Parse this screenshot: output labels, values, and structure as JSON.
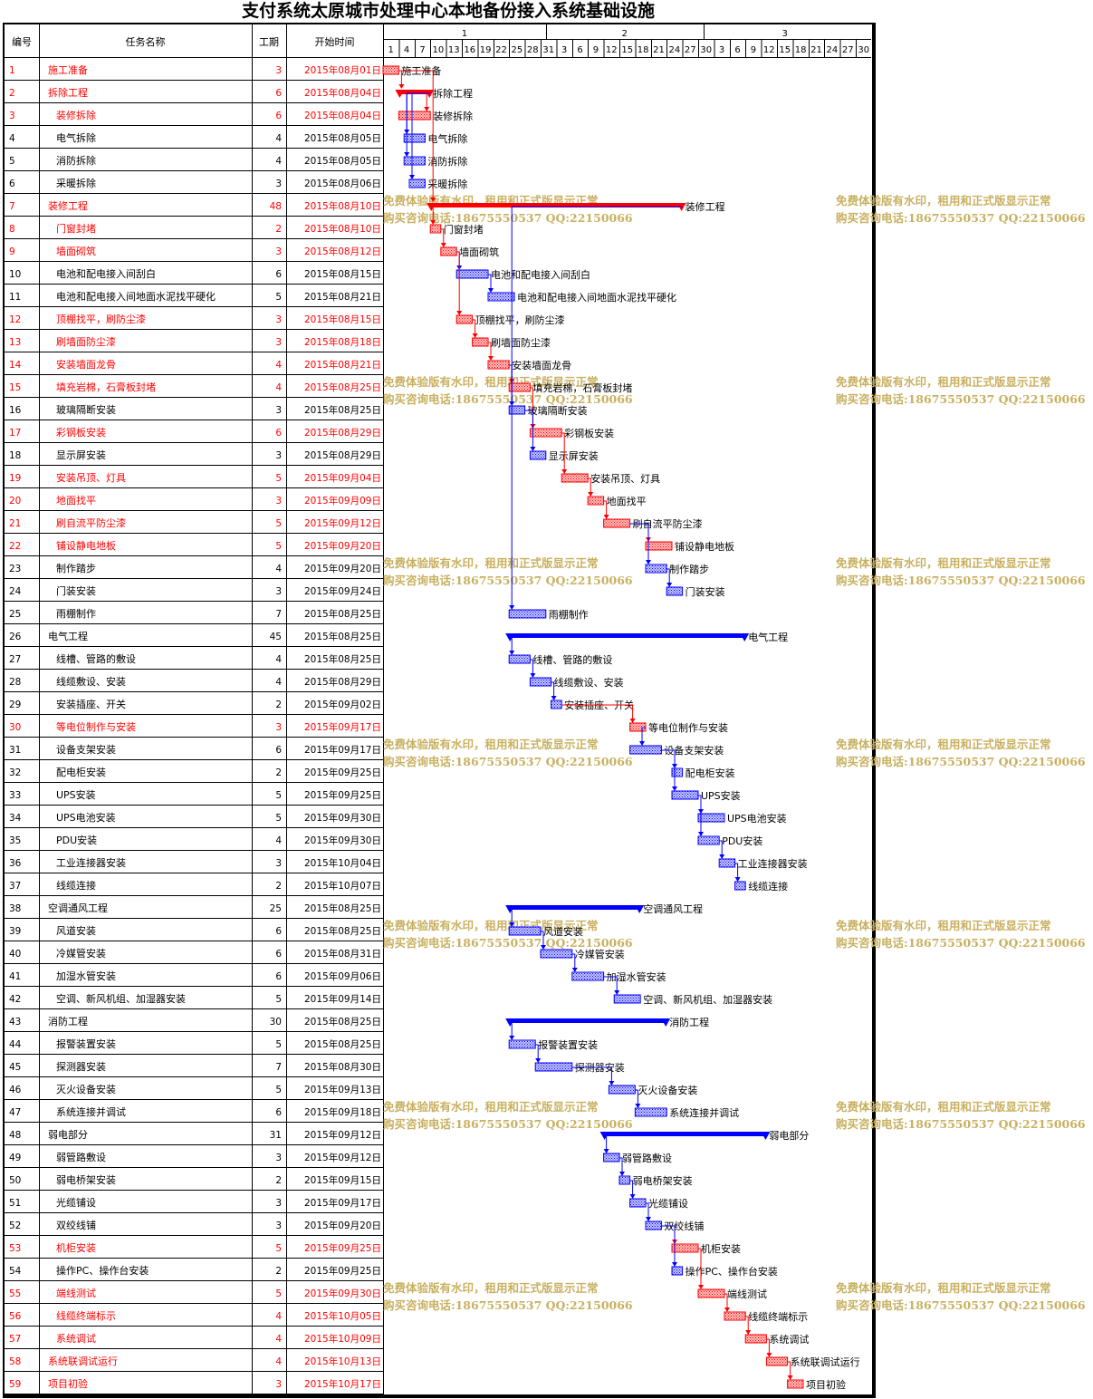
{
  "title": "支付系统太原城市处理中心本地备份接入系统基础设施",
  "watermark": {
    "line1": "免费体验版有水印，租用和正式版显示正常",
    "line2": "购买咨询电话:18675550537 QQ:22150066"
  },
  "colors": {
    "critical": "#ff0000",
    "normal": "#0000ff",
    "watermark": "#c8b060"
  },
  "chart_data": {
    "type": "gantt",
    "columns": [
      "编号",
      "任务名称",
      "工期",
      "开始时间"
    ],
    "months": [
      "1",
      "2",
      "3"
    ],
    "day_labels": [
      "1",
      "4",
      "7",
      "10",
      "13",
      "16",
      "19",
      "22",
      "25",
      "28",
      "31",
      "3",
      "6",
      "9",
      "12",
      "15",
      "18",
      "21",
      "24",
      "27",
      "30",
      "3",
      "6",
      "9",
      "12",
      "15",
      "18",
      "21",
      "24",
      "27",
      "30"
    ],
    "tasks": [
      {
        "id": "1",
        "name": "施工准备",
        "duration": 3,
        "start": "2015年08月01日",
        "critical": true,
        "summary": false,
        "level": 0
      },
      {
        "id": "2",
        "name": "拆除工程",
        "duration": 6,
        "start": "2015年08月04日",
        "critical": true,
        "summary": true,
        "level": 0
      },
      {
        "id": "3",
        "name": "装修拆除",
        "duration": 6,
        "start": "2015年08月04日",
        "critical": true,
        "summary": false,
        "level": 1
      },
      {
        "id": "4",
        "name": "电气拆除",
        "duration": 4,
        "start": "2015年08月05日",
        "critical": false,
        "summary": false,
        "level": 1
      },
      {
        "id": "5",
        "name": "消防拆除",
        "duration": 4,
        "start": "2015年08月05日",
        "critical": false,
        "summary": false,
        "level": 1
      },
      {
        "id": "6",
        "name": "采暖拆除",
        "duration": 3,
        "start": "2015年08月06日",
        "critical": false,
        "summary": false,
        "level": 1
      },
      {
        "id": "7",
        "name": "装修工程",
        "duration": 48,
        "start": "2015年08月10日",
        "critical": true,
        "summary": true,
        "level": 0
      },
      {
        "id": "8",
        "name": "门窗封堵",
        "duration": 2,
        "start": "2015年08月10日",
        "critical": true,
        "summary": false,
        "level": 1
      },
      {
        "id": "9",
        "name": "墙面砌筑",
        "duration": 3,
        "start": "2015年08月12日",
        "critical": true,
        "summary": false,
        "level": 1
      },
      {
        "id": "10",
        "name": "电池和配电接入间刮白",
        "duration": 6,
        "start": "2015年08月15日",
        "critical": false,
        "summary": false,
        "level": 1
      },
      {
        "id": "11",
        "name": "电池和配电接入间地面水泥找平硬化",
        "duration": 5,
        "start": "2015年08月21日",
        "critical": false,
        "summary": false,
        "level": 1
      },
      {
        "id": "12",
        "name": "顶棚找平，刷防尘漆",
        "duration": 3,
        "start": "2015年08月15日",
        "critical": true,
        "summary": false,
        "level": 1
      },
      {
        "id": "13",
        "name": "刷墙面防尘漆",
        "duration": 3,
        "start": "2015年08月18日",
        "critical": true,
        "summary": false,
        "level": 1
      },
      {
        "id": "14",
        "name": "安装墙面龙骨",
        "duration": 4,
        "start": "2015年08月21日",
        "critical": true,
        "summary": false,
        "level": 1
      },
      {
        "id": "15",
        "name": "填充岩棉，石膏板封堵",
        "duration": 4,
        "start": "2015年08月25日",
        "critical": true,
        "summary": false,
        "level": 1
      },
      {
        "id": "16",
        "name": "玻璃隔断安装",
        "duration": 3,
        "start": "2015年08月25日",
        "critical": false,
        "summary": false,
        "level": 1
      },
      {
        "id": "17",
        "name": "彩钢板安装",
        "duration": 6,
        "start": "2015年08月29日",
        "critical": true,
        "summary": false,
        "level": 1
      },
      {
        "id": "18",
        "name": "显示屏安装",
        "duration": 3,
        "start": "2015年08月29日",
        "critical": false,
        "summary": false,
        "level": 1
      },
      {
        "id": "19",
        "name": "安装吊顶、灯具",
        "duration": 5,
        "start": "2015年09月04日",
        "critical": true,
        "summary": false,
        "level": 1
      },
      {
        "id": "20",
        "name": "地面找平",
        "duration": 3,
        "start": "2015年09月09日",
        "critical": true,
        "summary": false,
        "level": 1
      },
      {
        "id": "21",
        "name": "刷自流平防尘漆",
        "duration": 5,
        "start": "2015年09月12日",
        "critical": true,
        "summary": false,
        "level": 1
      },
      {
        "id": "22",
        "name": "铺设静电地板",
        "duration": 5,
        "start": "2015年09月20日",
        "critical": true,
        "summary": false,
        "level": 1
      },
      {
        "id": "23",
        "name": "制作踏步",
        "duration": 4,
        "start": "2015年09月20日",
        "critical": false,
        "summary": false,
        "level": 1
      },
      {
        "id": "24",
        "name": "门装安装",
        "duration": 3,
        "start": "2015年09月24日",
        "critical": false,
        "summary": false,
        "level": 1
      },
      {
        "id": "25",
        "name": "雨棚制作",
        "duration": 7,
        "start": "2015年08月25日",
        "critical": false,
        "summary": false,
        "level": 1
      },
      {
        "id": "26",
        "name": "电气工程",
        "duration": 45,
        "start": "2015年08月25日",
        "critical": false,
        "summary": true,
        "level": 0
      },
      {
        "id": "27",
        "name": "线槽、管路的敷设",
        "duration": 4,
        "start": "2015年08月25日",
        "critical": false,
        "summary": false,
        "level": 1
      },
      {
        "id": "28",
        "name": "线缆敷设、安装",
        "duration": 4,
        "start": "2015年08月29日",
        "critical": false,
        "summary": false,
        "level": 1
      },
      {
        "id": "29",
        "name": "安装插座、开关",
        "duration": 2,
        "start": "2015年09月02日",
        "critical": false,
        "summary": false,
        "level": 1
      },
      {
        "id": "30",
        "name": "等电位制作与安装",
        "duration": 3,
        "start": "2015年09月17日",
        "critical": true,
        "summary": false,
        "level": 1
      },
      {
        "id": "31",
        "name": "设备支架安装",
        "duration": 6,
        "start": "2015年09月17日",
        "critical": false,
        "summary": false,
        "level": 1
      },
      {
        "id": "32",
        "name": "配电柜安装",
        "duration": 2,
        "start": "2015年09月25日",
        "critical": false,
        "summary": false,
        "level": 1
      },
      {
        "id": "33",
        "name": "UPS安装",
        "duration": 5,
        "start": "2015年09月25日",
        "critical": false,
        "summary": false,
        "level": 1
      },
      {
        "id": "34",
        "name": "UPS电池安装",
        "duration": 5,
        "start": "2015年09月30日",
        "critical": false,
        "summary": false,
        "level": 1
      },
      {
        "id": "35",
        "name": "PDU安装",
        "duration": 4,
        "start": "2015年09月30日",
        "critical": false,
        "summary": false,
        "level": 1
      },
      {
        "id": "36",
        "name": "工业连接器安装",
        "duration": 3,
        "start": "2015年10月04日",
        "critical": false,
        "summary": false,
        "level": 1
      },
      {
        "id": "37",
        "name": "线缆连接",
        "duration": 2,
        "start": "2015年10月07日",
        "critical": false,
        "summary": false,
        "level": 1
      },
      {
        "id": "38",
        "name": "空调通风工程",
        "duration": 25,
        "start": "2015年08月25日",
        "critical": false,
        "summary": true,
        "level": 0
      },
      {
        "id": "39",
        "name": "风道安装",
        "duration": 6,
        "start": "2015年08月25日",
        "critical": false,
        "summary": false,
        "level": 1
      },
      {
        "id": "40",
        "name": "冷媒管安装",
        "duration": 6,
        "start": "2015年08月31日",
        "critical": false,
        "summary": false,
        "level": 1
      },
      {
        "id": "41",
        "name": "加湿水管安装",
        "duration": 6,
        "start": "2015年09月06日",
        "critical": false,
        "summary": false,
        "level": 1
      },
      {
        "id": "42",
        "name": "空调、新风机组、加湿器安装",
        "duration": 5,
        "start": "2015年09月14日",
        "critical": false,
        "summary": false,
        "level": 1
      },
      {
        "id": "43",
        "name": "消防工程",
        "duration": 30,
        "start": "2015年08月25日",
        "critical": false,
        "summary": true,
        "level": 0
      },
      {
        "id": "44",
        "name": "报警装置安装",
        "duration": 5,
        "start": "2015年08月25日",
        "critical": false,
        "summary": false,
        "level": 1
      },
      {
        "id": "45",
        "name": "探测器安装",
        "duration": 7,
        "start": "2015年08月30日",
        "critical": false,
        "summary": false,
        "level": 1
      },
      {
        "id": "46",
        "name": "灭火设备安装",
        "duration": 5,
        "start": "2015年09月13日",
        "critical": false,
        "summary": false,
        "level": 1
      },
      {
        "id": "47",
        "name": "系统连接并调试",
        "duration": 6,
        "start": "2015年09月18日",
        "critical": false,
        "summary": false,
        "level": 1
      },
      {
        "id": "48",
        "name": "弱电部分",
        "duration": 31,
        "start": "2015年09月12日",
        "critical": false,
        "summary": true,
        "level": 0
      },
      {
        "id": "49",
        "name": "弱管路敷设",
        "duration": 3,
        "start": "2015年09月12日",
        "critical": false,
        "summary": false,
        "level": 1
      },
      {
        "id": "50",
        "name": "弱电桥架安装",
        "duration": 2,
        "start": "2015年09月15日",
        "critical": false,
        "summary": false,
        "level": 1
      },
      {
        "id": "51",
        "name": "光缆铺设",
        "duration": 3,
        "start": "2015年09月17日",
        "critical": false,
        "summary": false,
        "level": 1
      },
      {
        "id": "52",
        "name": "双绞线铺",
        "duration": 3,
        "start": "2015年09月20日",
        "critical": false,
        "summary": false,
        "level": 1
      },
      {
        "id": "53",
        "name": "机柜安装",
        "duration": 5,
        "start": "2015年09月25日",
        "critical": true,
        "summary": false,
        "level": 1
      },
      {
        "id": "54",
        "name": "操作PC、操作台安装",
        "duration": 2,
        "start": "2015年09月25日",
        "critical": false,
        "summary": false,
        "level": 1
      },
      {
        "id": "55",
        "name": "端线测试",
        "duration": 5,
        "start": "2015年09月30日",
        "critical": true,
        "summary": false,
        "level": 1
      },
      {
        "id": "56",
        "name": "线缆终端标示",
        "duration": 4,
        "start": "2015年10月05日",
        "critical": true,
        "summary": false,
        "level": 1
      },
      {
        "id": "57",
        "name": "系统调试",
        "duration": 4,
        "start": "2015年10月09日",
        "critical": true,
        "summary": false,
        "level": 1
      },
      {
        "id": "58",
        "name": "系统联调试运行",
        "duration": 4,
        "start": "2015年10月13日",
        "critical": true,
        "summary": false,
        "level": 0
      },
      {
        "id": "59",
        "name": "项目初验",
        "duration": 3,
        "start": "2015年10月17日",
        "critical": true,
        "summary": false,
        "level": 0
      }
    ]
  }
}
